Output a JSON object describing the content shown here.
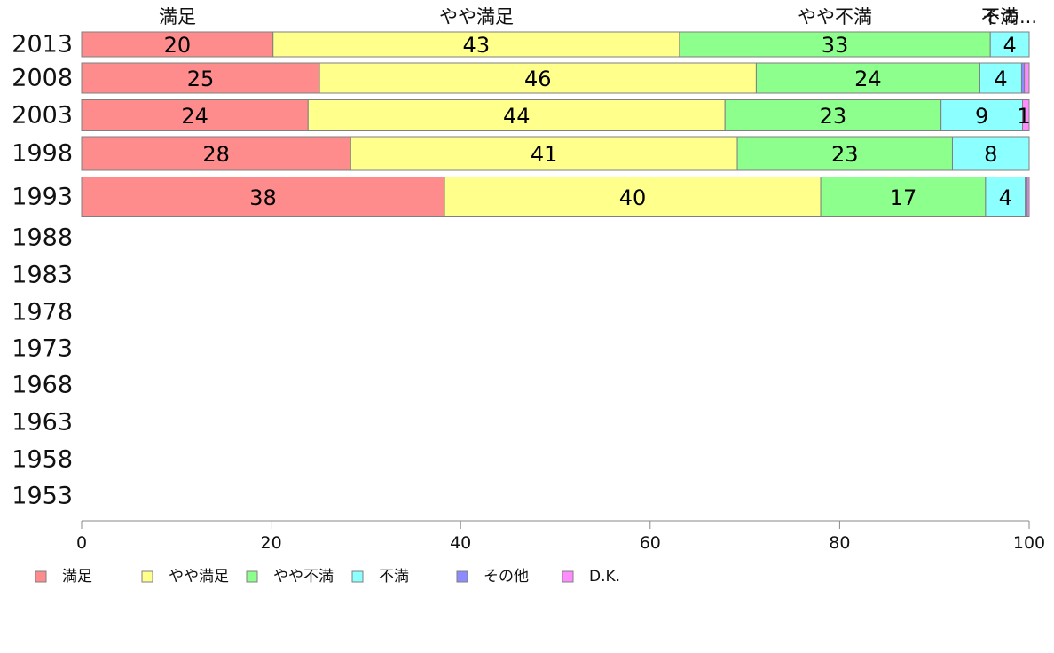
{
  "chart_data": {
    "type": "bar",
    "orientation": "horizontal",
    "stacked": true,
    "categories": [
      "2013",
      "2008",
      "2003",
      "1998",
      "1993",
      "1988",
      "1983",
      "1978",
      "1973",
      "1968",
      "1963",
      "1958",
      "1953"
    ],
    "series": [
      {
        "name": "満足",
        "color": "#ff8c8c",
        "values": [
          20.2,
          25.1,
          23.9,
          28.4,
          38.3,
          null,
          null,
          null,
          null,
          null,
          null,
          null,
          null
        ],
        "labels": [
          "20",
          "25",
          "24",
          "28",
          "38",
          "",
          "",
          "",
          "",
          "",
          "",
          "",
          ""
        ]
      },
      {
        "name": "やや満足",
        "color": "#ffff8c",
        "values": [
          42.9,
          46.1,
          44.0,
          40.8,
          39.7,
          null,
          null,
          null,
          null,
          null,
          null,
          null,
          null
        ],
        "labels": [
          "43",
          "46",
          "44",
          "41",
          "40",
          "",
          "",
          "",
          "",
          "",
          "",
          "",
          ""
        ]
      },
      {
        "name": "やや不満",
        "color": "#8cff8c",
        "values": [
          32.8,
          23.6,
          22.8,
          22.7,
          17.4,
          null,
          null,
          null,
          null,
          null,
          null,
          null,
          null
        ],
        "labels": [
          "33",
          "24",
          "23",
          "23",
          "17",
          "",
          "",
          "",
          "",
          "",
          "",
          "",
          ""
        ]
      },
      {
        "name": "不満",
        "color": "#8cffff",
        "values": [
          4.1,
          4.4,
          8.6,
          8.1,
          4.2,
          null,
          null,
          null,
          null,
          null,
          null,
          null,
          null
        ],
        "labels": [
          "4",
          "4",
          "9",
          "8",
          "4",
          "",
          "",
          "",
          "",
          "",
          "",
          "",
          ""
        ]
      },
      {
        "name": "その他",
        "color": "#8c8cff",
        "values": [
          0.0,
          0.3,
          0.0,
          0.0,
          0.2,
          null,
          null,
          null,
          null,
          null,
          null,
          null,
          null
        ],
        "labels": [
          "",
          "",
          "",
          "",
          "",
          "",
          "",
          "",
          "",
          "",
          "",
          "",
          ""
        ]
      },
      {
        "name": "D.K.",
        "color": "#ff8cff",
        "values": [
          0.0,
          0.5,
          0.7,
          0.0,
          0.2,
          null,
          null,
          null,
          null,
          null,
          null,
          null,
          null
        ],
        "labels": [
          "",
          "",
          "1",
          "",
          "",
          "",
          "",
          "",
          "",
          "",
          "",
          "",
          ""
        ]
      }
    ],
    "top_labels": [
      "満足",
      "やや満足",
      "やや不満",
      "不満",
      "その..."
    ],
    "xlim": [
      0,
      100
    ],
    "xticks": [
      0,
      20,
      40,
      60,
      80,
      100
    ],
    "xlabel": "",
    "ylabel": "",
    "grid": false,
    "legend_position": "bottom"
  }
}
